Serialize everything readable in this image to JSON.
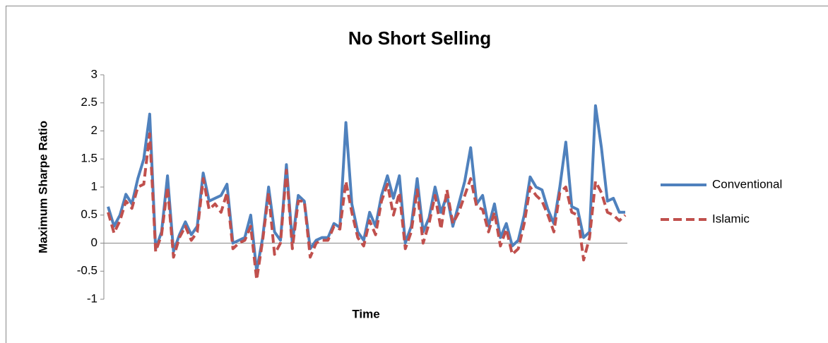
{
  "chart_data": {
    "type": "line",
    "title": "No Short Selling",
    "xlabel": "Time",
    "ylabel": "Maximum Sharpe Ratio",
    "ylim": [
      -1,
      3
    ],
    "yticks": [
      -1,
      -0.5,
      0,
      0.5,
      1,
      1.5,
      2,
      2.5,
      3
    ],
    "grid": false,
    "legend": "right",
    "series": [
      {
        "name": "Conventional",
        "color": "#4f81bd",
        "dash": false,
        "values": [
          0.65,
          0.3,
          0.5,
          0.87,
          0.7,
          1.15,
          1.5,
          2.3,
          -0.1,
          0.2,
          1.2,
          -0.15,
          0.15,
          0.38,
          0.15,
          0.3,
          1.25,
          0.75,
          0.8,
          0.85,
          1.05,
          0.0,
          0.05,
          0.1,
          0.5,
          -0.5,
          0.1,
          1.0,
          0.2,
          0.05,
          1.4,
          0.0,
          0.85,
          0.75,
          -0.1,
          0.05,
          0.1,
          0.1,
          0.35,
          0.28,
          2.15,
          0.7,
          0.2,
          0.05,
          0.55,
          0.3,
          0.85,
          1.2,
          0.8,
          1.2,
          0.0,
          0.3,
          1.15,
          0.2,
          0.45,
          1.0,
          0.55,
          0.85,
          0.3,
          0.7,
          1.1,
          1.7,
          0.7,
          0.85,
          0.3,
          0.7,
          0.1,
          0.35,
          -0.05,
          0.05,
          0.5,
          1.18,
          1.0,
          0.95,
          0.6,
          0.35,
          1.0,
          1.8,
          0.65,
          0.6,
          0.1,
          0.2,
          2.45,
          1.7,
          0.75,
          0.8,
          0.55,
          0.55
        ]
      },
      {
        "name": "Islamic",
        "color": "#c0504d",
        "dash": true,
        "values": [
          0.55,
          0.18,
          0.4,
          0.75,
          0.62,
          1.0,
          1.05,
          1.95,
          -0.15,
          0.15,
          1.0,
          -0.25,
          0.1,
          0.3,
          0.05,
          0.2,
          1.15,
          0.6,
          0.7,
          0.55,
          0.9,
          -0.1,
          0.0,
          0.05,
          0.3,
          -0.65,
          0.05,
          0.9,
          -0.2,
          0.0,
          1.3,
          -0.1,
          0.75,
          0.75,
          -0.25,
          0.0,
          0.05,
          0.05,
          0.3,
          0.25,
          1.1,
          0.55,
          0.1,
          -0.05,
          0.4,
          0.15,
          0.75,
          1.05,
          0.5,
          0.9,
          -0.1,
          0.2,
          0.95,
          0.0,
          0.35,
          0.85,
          0.25,
          0.95,
          0.35,
          0.55,
          0.85,
          1.15,
          0.65,
          0.6,
          0.2,
          0.55,
          -0.05,
          0.25,
          -0.2,
          -0.1,
          0.35,
          1.0,
          0.85,
          0.75,
          0.5,
          0.2,
          0.9,
          1.0,
          0.55,
          0.5,
          -0.3,
          0.1,
          1.1,
          0.9,
          0.55,
          0.5,
          0.4,
          0.5
        ]
      }
    ]
  }
}
